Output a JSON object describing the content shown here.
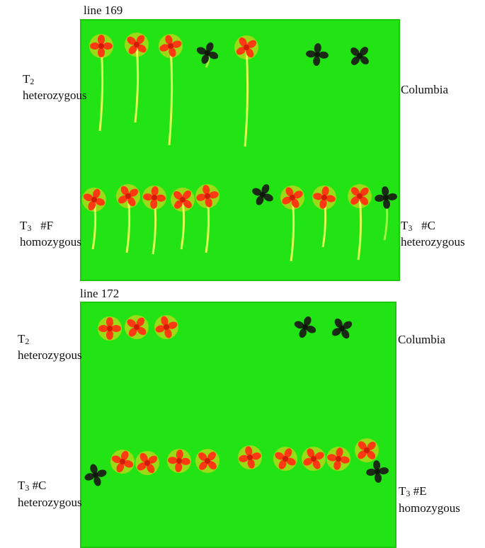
{
  "panels": [
    {
      "title": "line  169",
      "labels": {
        "top_left_gen": "T",
        "top_left_sub": "2",
        "top_left_zyg": "heterozygous",
        "top_right": "Columbia",
        "bottom_left_gen": "T",
        "bottom_left_sub": "3",
        "bottom_left_id": "#F",
        "bottom_left_zyg": "homozygous",
        "bottom_right_gen": "T",
        "bottom_right_sub": "3",
        "bottom_right_id": "#C",
        "bottom_right_zyg": "heterozygous"
      }
    },
    {
      "title": "line 172",
      "labels": {
        "top_left_gen": "T",
        "top_left_sub": "2",
        "top_left_zyg": "heterozygous",
        "top_right": "Columbia",
        "bottom_left_gen": "T",
        "bottom_left_sub": "3",
        "bottom_left_id": "#C",
        "bottom_left_zyg": "heterozygous",
        "bottom_right_gen": "T",
        "bottom_right_sub": "3",
        "bottom_right_id": "#E",
        "bottom_right_zyg": "homozygous"
      }
    }
  ],
  "colors": {
    "plate": "#22e414",
    "fluorescent_seedling": "#ff3a12",
    "fluorescent_glow": "#ffd21a",
    "dark_seedling": "#1a2a14",
    "root": "#f2ff5a"
  }
}
